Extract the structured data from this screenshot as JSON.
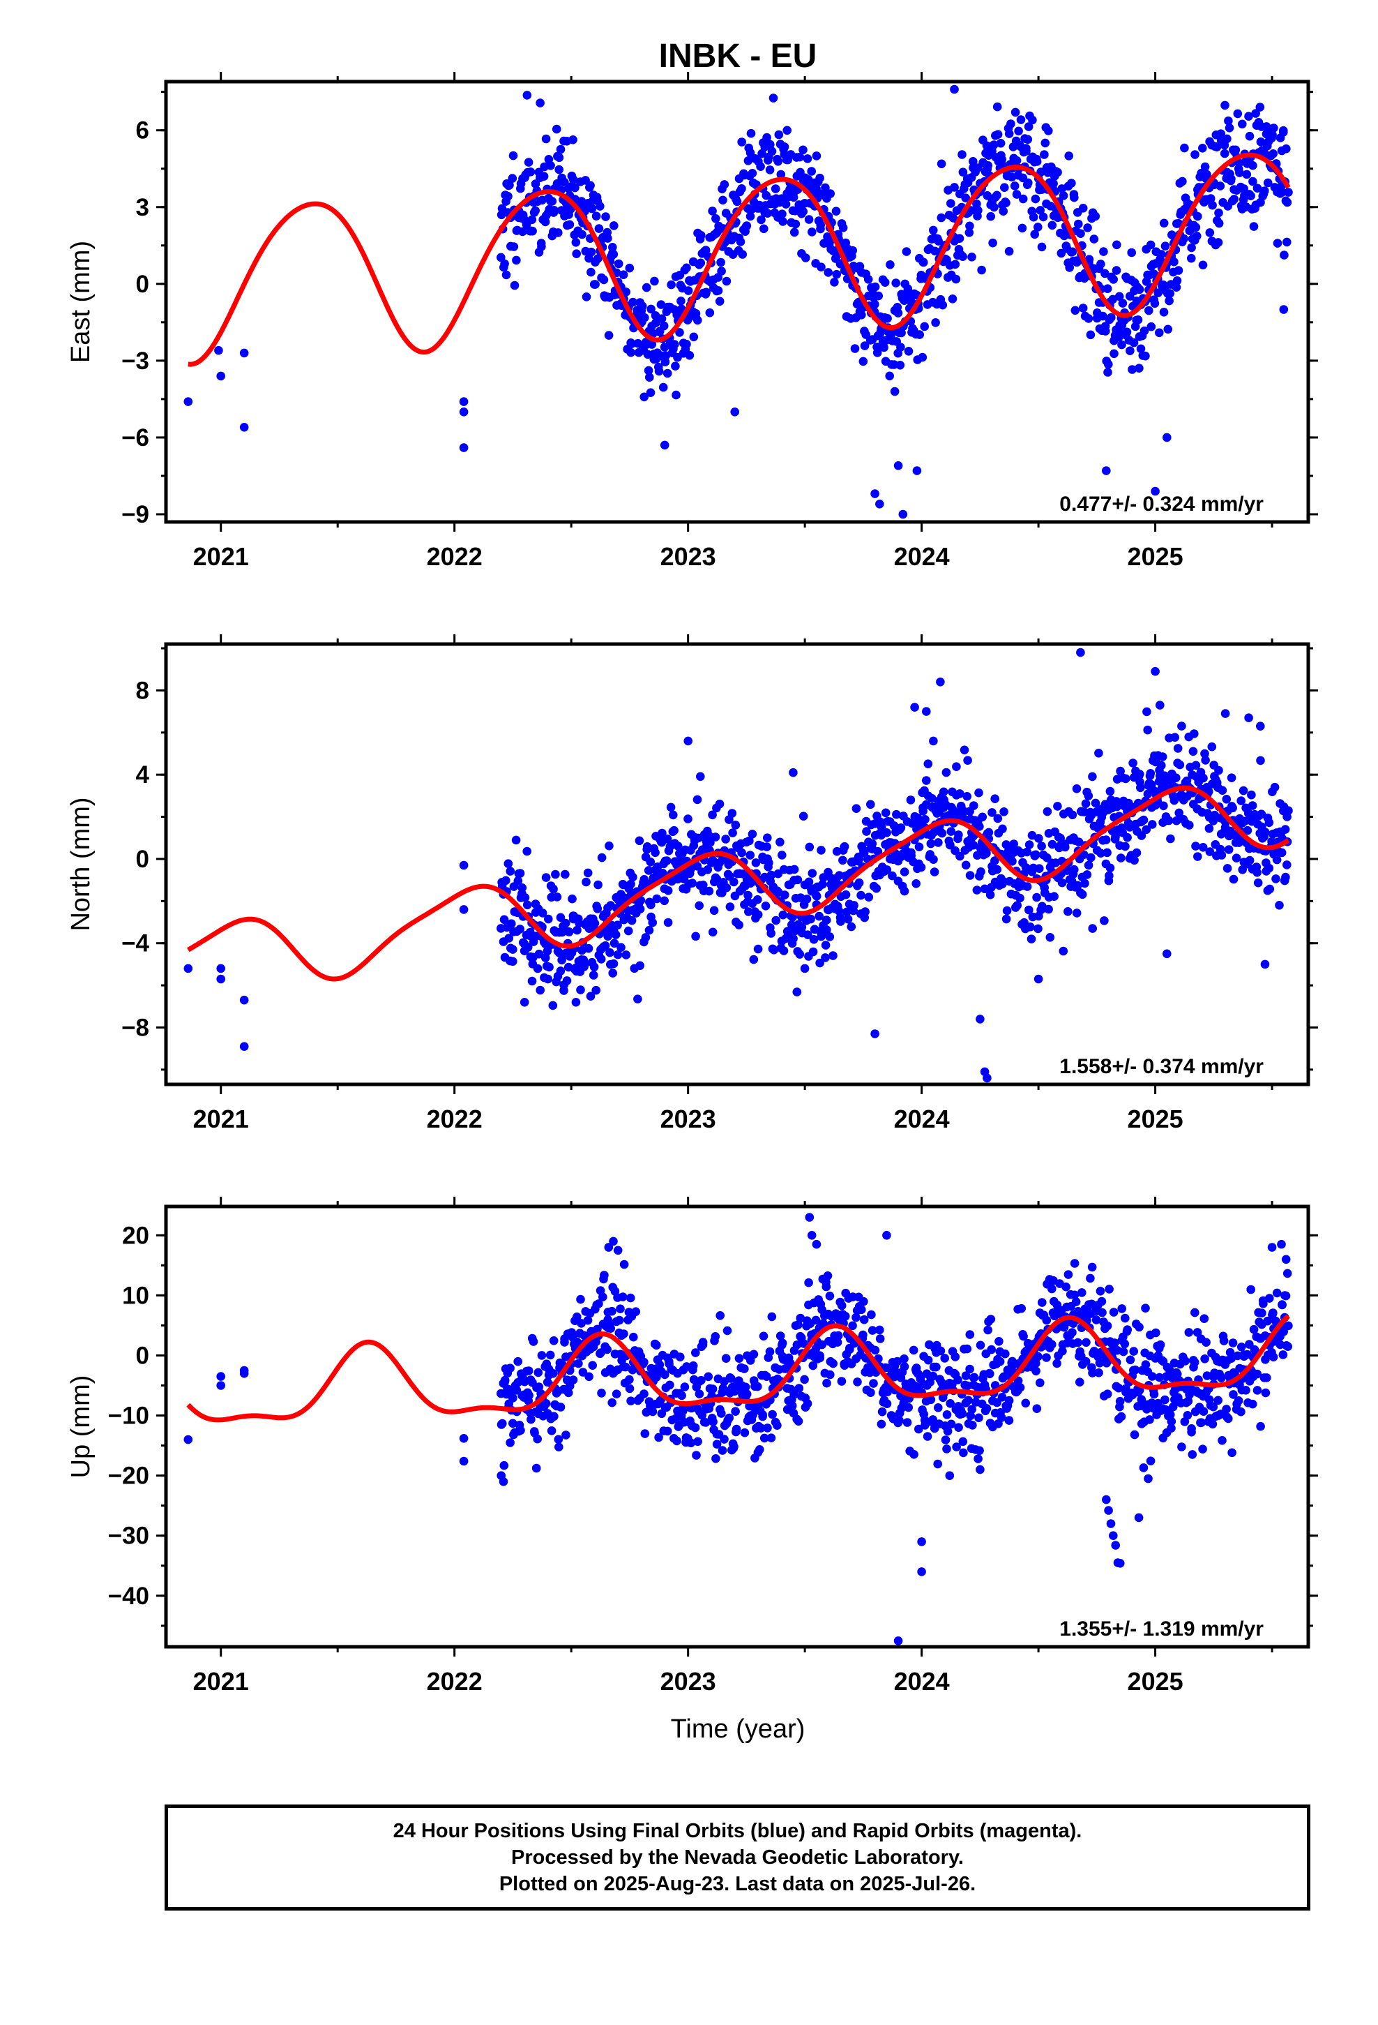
{
  "title": "INBK - EU",
  "xlabel": "Time (year)",
  "caption": [
    "24 Hour Positions Using Final Orbits (blue) and Rapid Orbits (magenta).",
    "Processed by the Nevada Geodetic Laboratory.",
    "Plotted on 2025-Aug-23. Last data on 2025-Jul-26."
  ],
  "colors": {
    "data": "#0000ff",
    "fit": "#ff0000",
    "frame": "#000000"
  },
  "chart_data": [
    {
      "type": "scatter",
      "component": "east",
      "ylabel": "East (mm)",
      "rate_label": "0.477+/- 0.324 mm/yr",
      "xlim": [
        2020.765,
        2025.655
      ],
      "ylim": [
        -9.3,
        7.9
      ],
      "xticks": [
        2021,
        2022,
        2023,
        2024,
        2025
      ],
      "yticks": [
        -9,
        -6,
        -3,
        0,
        3,
        6
      ],
      "model": {
        "rate": 0.477,
        "offset": 1.3,
        "annual_amp": 3.0,
        "annual_phase_year": 0.38,
        "semi_amp": 0.3,
        "semi_phase_year": 0.1
      },
      "series": [
        {
          "kind": "points",
          "x": [
            2020.86,
            2020.99,
            2021.0,
            2021.1,
            2021.1,
            2022.04,
            2022.04,
            2022.04,
            2022.9,
            2023.2,
            2023.55,
            2023.8,
            2023.82,
            2023.9,
            2023.92,
            2023.98,
            2024.14,
            2024.63,
            2024.79,
            2025.0,
            2025.05,
            2025.55
          ],
          "y": [
            -4.6,
            -2.6,
            -3.6,
            -2.7,
            -5.6,
            -4.6,
            -5.0,
            -6.4,
            -6.3,
            -5.0,
            5.0,
            -8.2,
            -8.6,
            -7.1,
            -9.0,
            -7.3,
            7.6,
            5.0,
            -7.3,
            -8.1,
            -6.0,
            -1.0
          ]
        },
        {
          "kind": "points",
          "generated": true,
          "x_start": 2022.2,
          "x_end": 2025.57,
          "count": 1200,
          "noise": 1.15,
          "seed": 11
        },
        {
          "kind": "fit",
          "x_start": 2020.86,
          "x_end": 2025.57
        }
      ]
    },
    {
      "type": "scatter",
      "component": "north",
      "ylabel": "North (mm)",
      "rate_label": "1.558+/- 0.374 mm/yr",
      "xlim": [
        2020.765,
        2025.655
      ],
      "ylim": [
        -10.7,
        10.2
      ],
      "xticks": [
        2021,
        2022,
        2023,
        2024,
        2025
      ],
      "yticks": [
        -8,
        -4,
        0,
        4,
        8
      ],
      "model": {
        "rate": 1.558,
        "offset": -1.05,
        "annual_amp": 1.6,
        "annual_phase_year": 0.04,
        "semi_amp": 0.35,
        "semi_phase_year": 0.2
      },
      "series": [
        {
          "kind": "points",
          "x": [
            2020.86,
            2021.0,
            2021.0,
            2021.1,
            2021.1,
            2022.04,
            2022.04,
            2022.3,
            2022.4,
            2022.52,
            2023.0,
            2023.45,
            2023.5,
            2023.8,
            2023.97,
            2024.02,
            2024.05,
            2024.08,
            2024.25,
            2024.27,
            2024.28,
            2024.5,
            2024.68,
            2025.0,
            2025.02,
            2025.05,
            2025.3,
            2025.4,
            2025.45,
            2025.47
          ],
          "y": [
            -5.2,
            -5.2,
            -5.7,
            -6.7,
            -8.9,
            -0.3,
            -2.4,
            -6.8,
            -5.7,
            -6.8,
            5.6,
            4.1,
            -5.2,
            -8.3,
            7.2,
            7.0,
            5.6,
            8.4,
            -7.6,
            -10.1,
            -10.4,
            -5.7,
            9.8,
            8.9,
            7.3,
            -4.5,
            6.9,
            6.7,
            6.3,
            -5.0
          ]
        },
        {
          "kind": "points",
          "generated": true,
          "x_start": 2022.2,
          "x_end": 2025.57,
          "count": 1200,
          "noise": 1.35,
          "seed": 23
        },
        {
          "kind": "fit",
          "x_start": 2020.86,
          "x_end": 2025.57
        }
      ]
    },
    {
      "type": "scatter",
      "component": "up",
      "ylabel": "Up (mm)",
      "rate_label": "1.355+/- 1.319 mm/yr",
      "xlim": [
        2020.765,
        2025.655
      ],
      "ylim": [
        -48.5,
        24.8
      ],
      "xticks": [
        2021,
        2022,
        2023,
        2024,
        2025
      ],
      "yticks": [
        -40,
        -30,
        -20,
        -10,
        0,
        10,
        20
      ],
      "model": {
        "rate": 1.355,
        "offset": -3.5,
        "annual_amp": 5.8,
        "annual_phase_year": 0.63,
        "semi_amp": 2.2,
        "semi_phase_year": 0.13
      },
      "series": [
        {
          "kind": "points",
          "x": [
            2020.86,
            2021.0,
            2021.0,
            2021.1,
            2021.1,
            2022.04,
            2022.04,
            2022.2,
            2022.21,
            2022.66,
            2022.68,
            2022.7,
            2023.52,
            2023.53,
            2023.55,
            2023.85,
            2023.9,
            2024.0,
            2024.0,
            2024.12,
            2024.25,
            2024.73,
            2024.79,
            2024.8,
            2024.81,
            2024.82,
            2024.83,
            2024.84,
            2024.85,
            2024.93,
            2024.97,
            2025.5,
            2025.54,
            2025.56
          ],
          "y": [
            -14.0,
            -3.5,
            -5.0,
            -2.5,
            -3.0,
            -13.8,
            -17.6,
            -20.0,
            -21.0,
            18.0,
            19.0,
            17.5,
            23.0,
            20.0,
            18.5,
            20.0,
            -47.5,
            -31.0,
            -36.0,
            -20.0,
            -19.0,
            14.7,
            -24.0,
            -25.8,
            -28.0,
            -30.0,
            -31.6,
            -34.5,
            -34.6,
            -27.0,
            -20.5,
            18.0,
            18.5,
            16.0
          ]
        },
        {
          "kind": "points",
          "generated": true,
          "x_start": 2022.2,
          "x_end": 2025.57,
          "count": 1200,
          "noise": 4.6,
          "seed": 37
        },
        {
          "kind": "fit",
          "x_start": 2020.86,
          "x_end": 2025.57
        }
      ]
    }
  ]
}
